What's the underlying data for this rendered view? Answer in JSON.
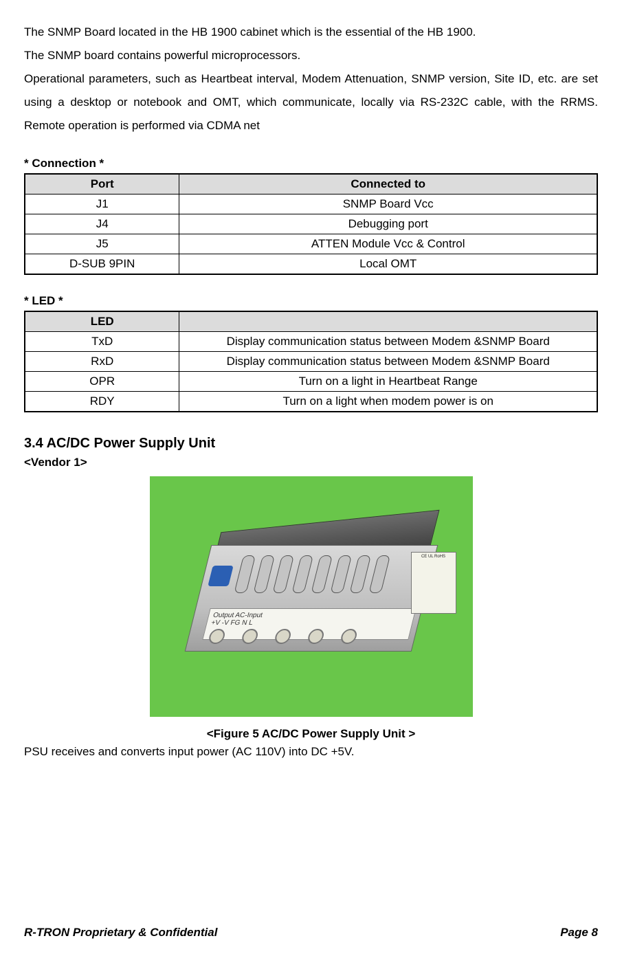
{
  "intro": {
    "line1": "The SNMP Board located in the HB 1900 cabinet which is the essential of the HB 1900.",
    "line2": "The SNMP board contains powerful microprocessors.",
    "line3": "Operational parameters, such as Heartbeat interval, Modem Attenuation, SNMP version, Site ID, etc. are set using a desktop or notebook and OMT, which communicate, locally via RS-232C cable, with the RRMS. Remote operation is performed via CDMA net"
  },
  "connection": {
    "label": "* Connection *",
    "headers": {
      "port": "Port",
      "connected": "Connected to"
    },
    "rows": [
      {
        "port": "J1",
        "connected": "SNMP Board Vcc"
      },
      {
        "port": "J4",
        "connected": "Debugging port"
      },
      {
        "port": "J5",
        "connected": "ATTEN Module Vcc & Control"
      },
      {
        "port": "D-SUB 9PIN",
        "connected": "Local OMT"
      }
    ]
  },
  "led": {
    "label": "* LED *",
    "headers": {
      "led": "LED",
      "desc": ""
    },
    "rows": [
      {
        "led": "TxD",
        "desc": "Display communication status between Modem &SNMP Board"
      },
      {
        "led": "RxD",
        "desc": "Display communication status between Modem &SNMP Board"
      },
      {
        "led": "OPR",
        "desc": "Turn on a light in Heartbeat Range"
      },
      {
        "led": "RDY",
        "desc": "Turn on a light when modem power is on"
      }
    ]
  },
  "section": {
    "heading": "3.4 AC/DC Power Supply Unit",
    "vendor": "<Vendor 1>"
  },
  "figure": {
    "caption": "<Figure 5 AC/DC Power Supply Unit >",
    "strip_text": "Output    AC-Input",
    "strip_sub": "+V   -V   FG    N    L",
    "sticker_text": "CE\nUL\nRoHS",
    "background_color": "#69c64a",
    "body_color": "#bfbfbf"
  },
  "psu_desc": "PSU receives and converts input power (AC 110V) into DC +5V.",
  "footer": {
    "left": "R-TRON Proprietary & Confidential",
    "right": "Page 8"
  },
  "colors": {
    "header_bg": "#dcdcdc",
    "border": "#000000",
    "text": "#000000",
    "page_bg": "#ffffff"
  },
  "typography": {
    "body_fontsize_pt": 13,
    "heading_fontsize_pt": 15,
    "font_family": "Arial"
  }
}
